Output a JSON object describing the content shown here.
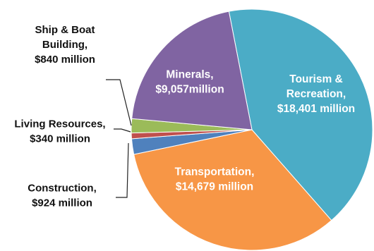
{
  "chart_data": {
    "type": "pie",
    "title": "",
    "units": "million",
    "slices": [
      {
        "category": "Tourism & Recreation",
        "value": 18401,
        "color": "#4BACC6",
        "label_lines": [
          "Tourism &",
          "Recreation,",
          "$18,401 million"
        ]
      },
      {
        "category": "Transportation",
        "value": 14679,
        "color": "#F79646",
        "label_lines": [
          "Transportation,",
          "$14,679 million"
        ]
      },
      {
        "category": "Construction",
        "value": 924,
        "color": "#4F81BD",
        "label_lines": [
          "Construction,",
          "$924 million"
        ]
      },
      {
        "category": "Living Resources",
        "value": 340,
        "color": "#C0504D",
        "label_lines": [
          "Living Resources,",
          "$340  million"
        ]
      },
      {
        "category": "Ship & Boat Building",
        "value": 840,
        "color": "#9BBB59",
        "label_lines": [
          "Ship & Boat",
          "Building,",
          "$840 million"
        ]
      },
      {
        "category": "Minerals",
        "value": 9057,
        "color": "#8064A2",
        "label_lines": [
          "Minerals,",
          "$9,057million"
        ]
      }
    ],
    "legend": "none"
  }
}
